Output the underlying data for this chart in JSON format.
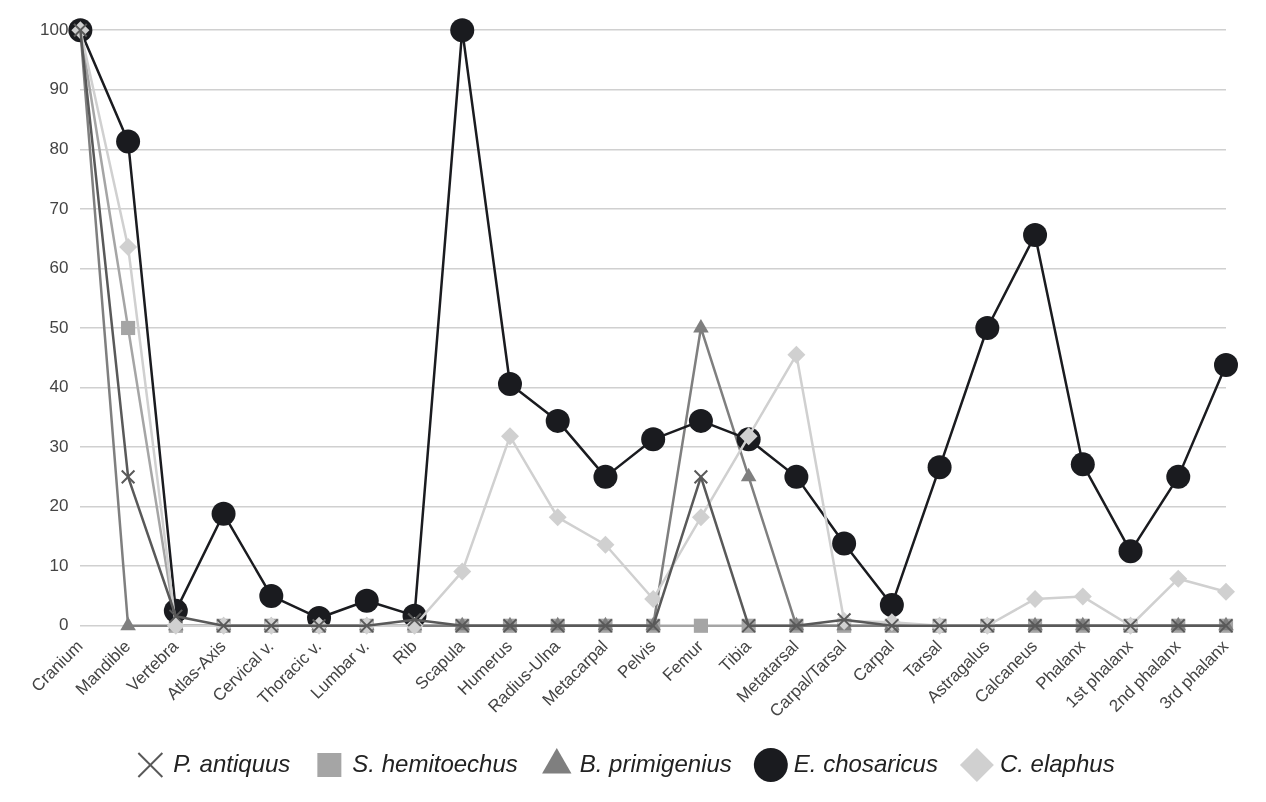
{
  "chart_data": {
    "type": "line",
    "categories": [
      "Cranium",
      "Mandible",
      "Vertebra",
      "Atlas-Axis",
      "Cervical v.",
      "Thoracic v.",
      "Lumbar v.",
      "Rib",
      "Scapula",
      "Humerus",
      "Radius-Ulna",
      "Metacarpal",
      "Pelvis",
      "Femur",
      "Tibia",
      "Metatarsal",
      "Carpal/Tarsal",
      "Carpal",
      "Tarsal",
      "Astragalus",
      "Calcaneus",
      "Phalanx",
      "1st phalanx",
      "2nd phalanx",
      "3rd phalanx"
    ],
    "series": [
      {
        "name": "P. antiquus",
        "color": "#595959",
        "marker": "cross",
        "values": [
          100,
          25,
          1.6,
          0,
          0,
          0,
          0,
          1,
          0,
          0,
          0,
          0,
          0,
          25,
          0,
          0,
          1,
          0,
          0,
          0,
          0,
          0,
          0,
          0,
          0
        ]
      },
      {
        "name": "S. hemitoechus",
        "color": "#a5a5a5",
        "marker": "square",
        "values": [
          100,
          50,
          0,
          0,
          0,
          0,
          0,
          0,
          0,
          0,
          0,
          0,
          0,
          0,
          0,
          0,
          0,
          0,
          0,
          0,
          0,
          0,
          0,
          0,
          0
        ]
      },
      {
        "name": "B. primigenius",
        "color": "#7f7f7f",
        "marker": "triangle",
        "values": [
          100,
          0,
          0,
          0,
          0,
          0,
          0,
          0,
          0,
          0,
          0,
          0,
          0,
          50,
          25,
          0,
          0,
          0,
          0,
          0,
          0,
          0,
          0,
          0,
          0
        ]
      },
      {
        "name": "E. chosaricus",
        "color": "#1a1b1f",
        "marker": "circle",
        "values": [
          100,
          81.3,
          2.5,
          18.8,
          5,
          1.3,
          4.2,
          1.7,
          100,
          40.6,
          34.4,
          25,
          31.3,
          34.4,
          31.3,
          25,
          13.8,
          3.5,
          26.6,
          50,
          65.6,
          27.1,
          12.5,
          25,
          43.8
        ]
      },
      {
        "name": "C. elaphus",
        "color": "#d0d0d0",
        "marker": "diamond",
        "values": [
          100,
          63.6,
          0,
          0,
          0,
          0,
          0,
          0,
          9.1,
          31.8,
          18.2,
          13.6,
          4.5,
          18.2,
          31.8,
          45.5,
          0.8,
          0.6,
          0,
          0,
          4.5,
          4.9,
          0,
          7.9,
          5.7
        ]
      }
    ],
    "ylim": [
      0,
      100
    ],
    "yticks": [
      0,
      10,
      20,
      30,
      40,
      50,
      60,
      70,
      80,
      90,
      100
    ],
    "grid": "y",
    "legend": "bottom"
  }
}
